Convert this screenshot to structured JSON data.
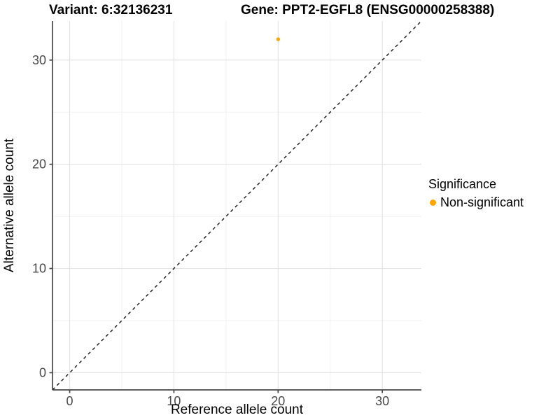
{
  "chart_data": {
    "type": "scatter",
    "titles": {
      "left": "Variant: 6:32136231",
      "right": "Gene: PPT2-EGFL8 (ENSG00000258388)"
    },
    "xlabel": "Reference allele count",
    "ylabel": "Alternative allele count",
    "xlim": [
      -1.65,
      33.75
    ],
    "ylim": [
      -1.65,
      33.75
    ],
    "x_ticks": [
      0,
      10,
      20,
      30
    ],
    "y_ticks": [
      0,
      10,
      20,
      30
    ],
    "x_minor_gridlines": [
      5,
      15,
      25
    ],
    "y_minor_gridlines": [
      5,
      15,
      25
    ],
    "grid": "on",
    "identity_line": {
      "style": "dashed",
      "color": "#000000",
      "slope": 1,
      "intercept": 0
    },
    "series": [
      {
        "name": "Non-significant",
        "color": "#FFA500",
        "points": [
          {
            "x": 20,
            "y": 32
          }
        ]
      }
    ],
    "legend": {
      "title": "Significance",
      "position": "right",
      "entries": [
        {
          "label": "Non-significant",
          "color": "#FFA500"
        }
      ]
    }
  },
  "colors": {
    "background": "#FFFFFF",
    "grid_major": "#E3E3E3",
    "grid_minor": "#F1F1F1",
    "axis_line": "#474747",
    "tick_label": "#4A4A4A",
    "point": "#FFA500"
  }
}
